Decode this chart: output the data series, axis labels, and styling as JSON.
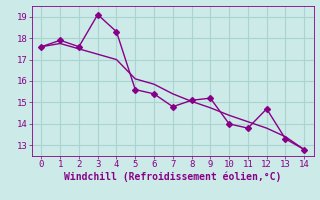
{
  "xlabel": "Windchill (Refroidissement éolien,°C)",
  "line1_x": [
    0,
    1,
    2,
    3,
    4,
    5,
    6,
    7,
    8,
    9,
    10,
    11,
    12,
    13,
    14
  ],
  "line1_y": [
    17.6,
    17.9,
    17.6,
    19.1,
    18.3,
    15.6,
    15.4,
    14.8,
    15.1,
    15.2,
    14.0,
    13.8,
    14.7,
    13.3,
    12.8
  ],
  "line2_x": [
    0,
    1,
    2,
    3,
    4,
    5,
    6,
    7,
    8,
    9,
    10,
    11,
    12,
    13,
    14
  ],
  "line2_y": [
    17.6,
    17.75,
    17.5,
    17.25,
    17.0,
    16.1,
    15.85,
    15.4,
    15.05,
    14.75,
    14.4,
    14.1,
    13.8,
    13.4,
    12.8
  ],
  "line_color": "#880088",
  "bg_color": "#cceae8",
  "grid_color": "#aad4d0",
  "text_color": "#880088",
  "xlim": [
    -0.5,
    14.5
  ],
  "ylim": [
    12.5,
    19.5
  ],
  "yticks": [
    13,
    14,
    15,
    16,
    17,
    18,
    19
  ],
  "xticks": [
    0,
    1,
    2,
    3,
    4,
    5,
    6,
    7,
    8,
    9,
    10,
    11,
    12,
    13,
    14
  ],
  "marker_style": "D",
  "marker_size": 3,
  "linewidth": 1.0,
  "tick_labelsize": 6.5,
  "xlabel_fontsize": 7.0
}
